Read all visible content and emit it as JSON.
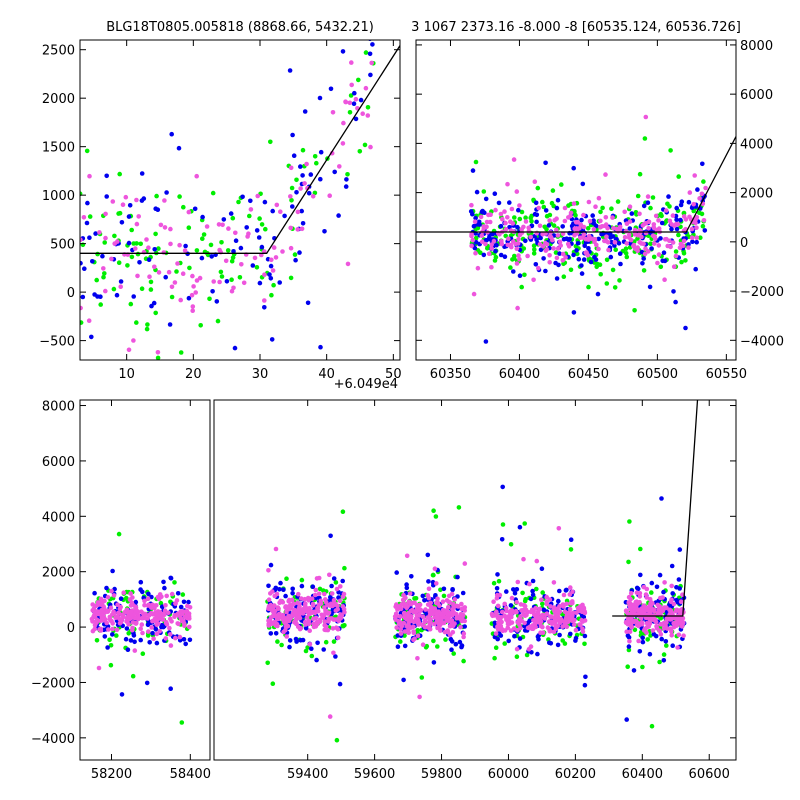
{
  "chart_data": [
    {
      "id": "top-left",
      "type": "scatter",
      "title": "BLG18T0805.005818 (8868.66, 5432.21)",
      "xlabel": "",
      "ylabel": "",
      "x_offset_label": "+6.049e4",
      "xlim": [
        3,
        51
      ],
      "ylim": [
        -700,
        2600
      ],
      "x_ticks": [
        10,
        20,
        30,
        40,
        50
      ],
      "y_ticks": [
        -500,
        0,
        500,
        1000,
        1500,
        2000,
        2500
      ],
      "y_axis_side": "left",
      "grid": false,
      "colors": {
        "green": "#00ee00",
        "blue": "#0000ee",
        "magenta": "#ee55dd",
        "model": "#000000"
      },
      "model_line": [
        [
          3,
          400
        ],
        [
          31,
          400
        ],
        [
          52,
          2650
        ]
      ],
      "scatter": {
        "x_range": [
          3,
          47
        ],
        "center_base": 400,
        "rise_start": 31,
        "rise_slope": 107,
        "spread": 420,
        "points_per_color": 120
      }
    },
    {
      "id": "top-right",
      "type": "scatter",
      "title": "3 1067 2373.16 -8.000 -8 [60535.124, 60536.726]",
      "xlabel": "",
      "ylabel": "",
      "xlim": [
        60325,
        60557
      ],
      "ylim": [
        -4800,
        8200
      ],
      "x_ticks": [
        60350,
        60400,
        60450,
        60500,
        60550
      ],
      "y_ticks": [
        -4000,
        -2000,
        0,
        2000,
        4000,
        6000,
        8000
      ],
      "y_axis_side": "right",
      "grid": false,
      "colors": {
        "green": "#00ee00",
        "blue": "#0000ee",
        "magenta": "#ee55dd",
        "model": "#000000"
      },
      "model_line": [
        [
          60325,
          400
        ],
        [
          60521,
          400
        ],
        [
          60560,
          4600
        ]
      ],
      "scatter": {
        "x_range": [
          60365,
          60535
        ],
        "center_base": 300,
        "rise_start": 60521,
        "rise_slope": 100,
        "spread": 700,
        "points_per_color": 260
      }
    },
    {
      "id": "bottom",
      "type": "scatter",
      "title": "",
      "xlabel": "",
      "ylabel": "",
      "broken_axis": true,
      "segments": [
        {
          "xlim": [
            58120,
            58450
          ],
          "x_ticks": [
            58200,
            58400
          ]
        },
        {
          "xlim": [
            59120,
            60680
          ],
          "x_ticks": [
            59400,
            59600,
            59800,
            60000,
            60200,
            60400,
            60600
          ]
        }
      ],
      "ylim": [
        -4800,
        8200
      ],
      "y_ticks": [
        -4000,
        -2000,
        0,
        2000,
        4000,
        6000,
        8000
      ],
      "y_axis_side": "left",
      "grid": false,
      "colors": {
        "green": "#00ee00",
        "blue": "#0000ee",
        "magenta": "#ee55dd",
        "model": "#000000"
      },
      "model_line": [
        [
          60310,
          400
        ],
        [
          60521,
          400
        ],
        [
          60565,
          8200
        ]
      ],
      "seasons": [
        {
          "x": [
            58150,
            58400
          ],
          "center": 450
        },
        {
          "x": [
            59280,
            59510
          ],
          "center": 500
        },
        {
          "x": [
            59660,
            59870
          ],
          "center": 400
        },
        {
          "x": [
            59950,
            60230
          ],
          "center": 350
        },
        {
          "x": [
            60350,
            60525
          ],
          "center": 400
        }
      ],
      "points_per_season": 420
    }
  ]
}
